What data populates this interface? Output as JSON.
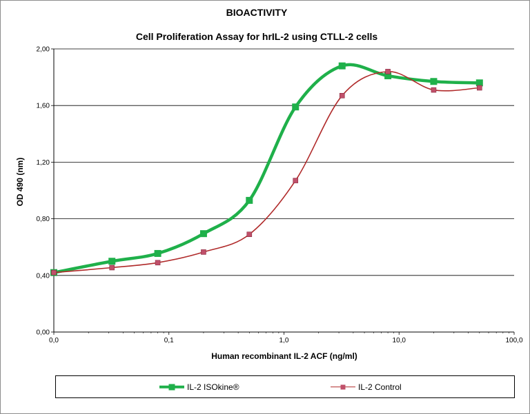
{
  "chart_data": {
    "type": "line",
    "title": "BIOACTIVITY",
    "subtitle": "Cell Proliferation Assay for hrIL-2 using CTLL-2 cells",
    "xlabel": "Human recombinant IL-2 ACF (ng/ml)",
    "ylabel": "OD 490 (nm)",
    "xscale": "log",
    "xlim": [
      0.01,
      100
    ],
    "ylim": [
      0,
      2
    ],
    "x_ticks": [
      0.01,
      0.1,
      1,
      10,
      100
    ],
    "x_tick_labels": [
      "0,0",
      "0,1",
      "1,0",
      "10,0",
      "100,0"
    ],
    "y_ticks": [
      0,
      0.4,
      0.8,
      1.2,
      1.6,
      2.0
    ],
    "y_tick_labels": [
      "0,00",
      "0,40",
      "0,80",
      "1,20",
      "1,60",
      "2,00"
    ],
    "grid": "horizontal",
    "legend_position": "bottom",
    "series": [
      {
        "name": "IL-2 ISOkine®",
        "color": "#1fb04a",
        "marker": "square-large",
        "x": [
          0.01,
          0.032,
          0.08,
          0.2,
          0.5,
          1.26,
          3.2,
          8,
          20,
          50
        ],
        "y": [
          0.42,
          0.5,
          0.555,
          0.695,
          0.93,
          1.59,
          1.88,
          1.81,
          1.77,
          1.76
        ]
      },
      {
        "name": "IL-2 Control",
        "color": "#b02a2a",
        "marker_color": "#c0506a",
        "marker": "square-small",
        "x": [
          0.01,
          0.032,
          0.08,
          0.2,
          0.5,
          1.26,
          3.2,
          8,
          20,
          50
        ],
        "y": [
          0.42,
          0.455,
          0.49,
          0.565,
          0.69,
          1.07,
          1.67,
          1.84,
          1.71,
          1.725
        ]
      }
    ]
  }
}
